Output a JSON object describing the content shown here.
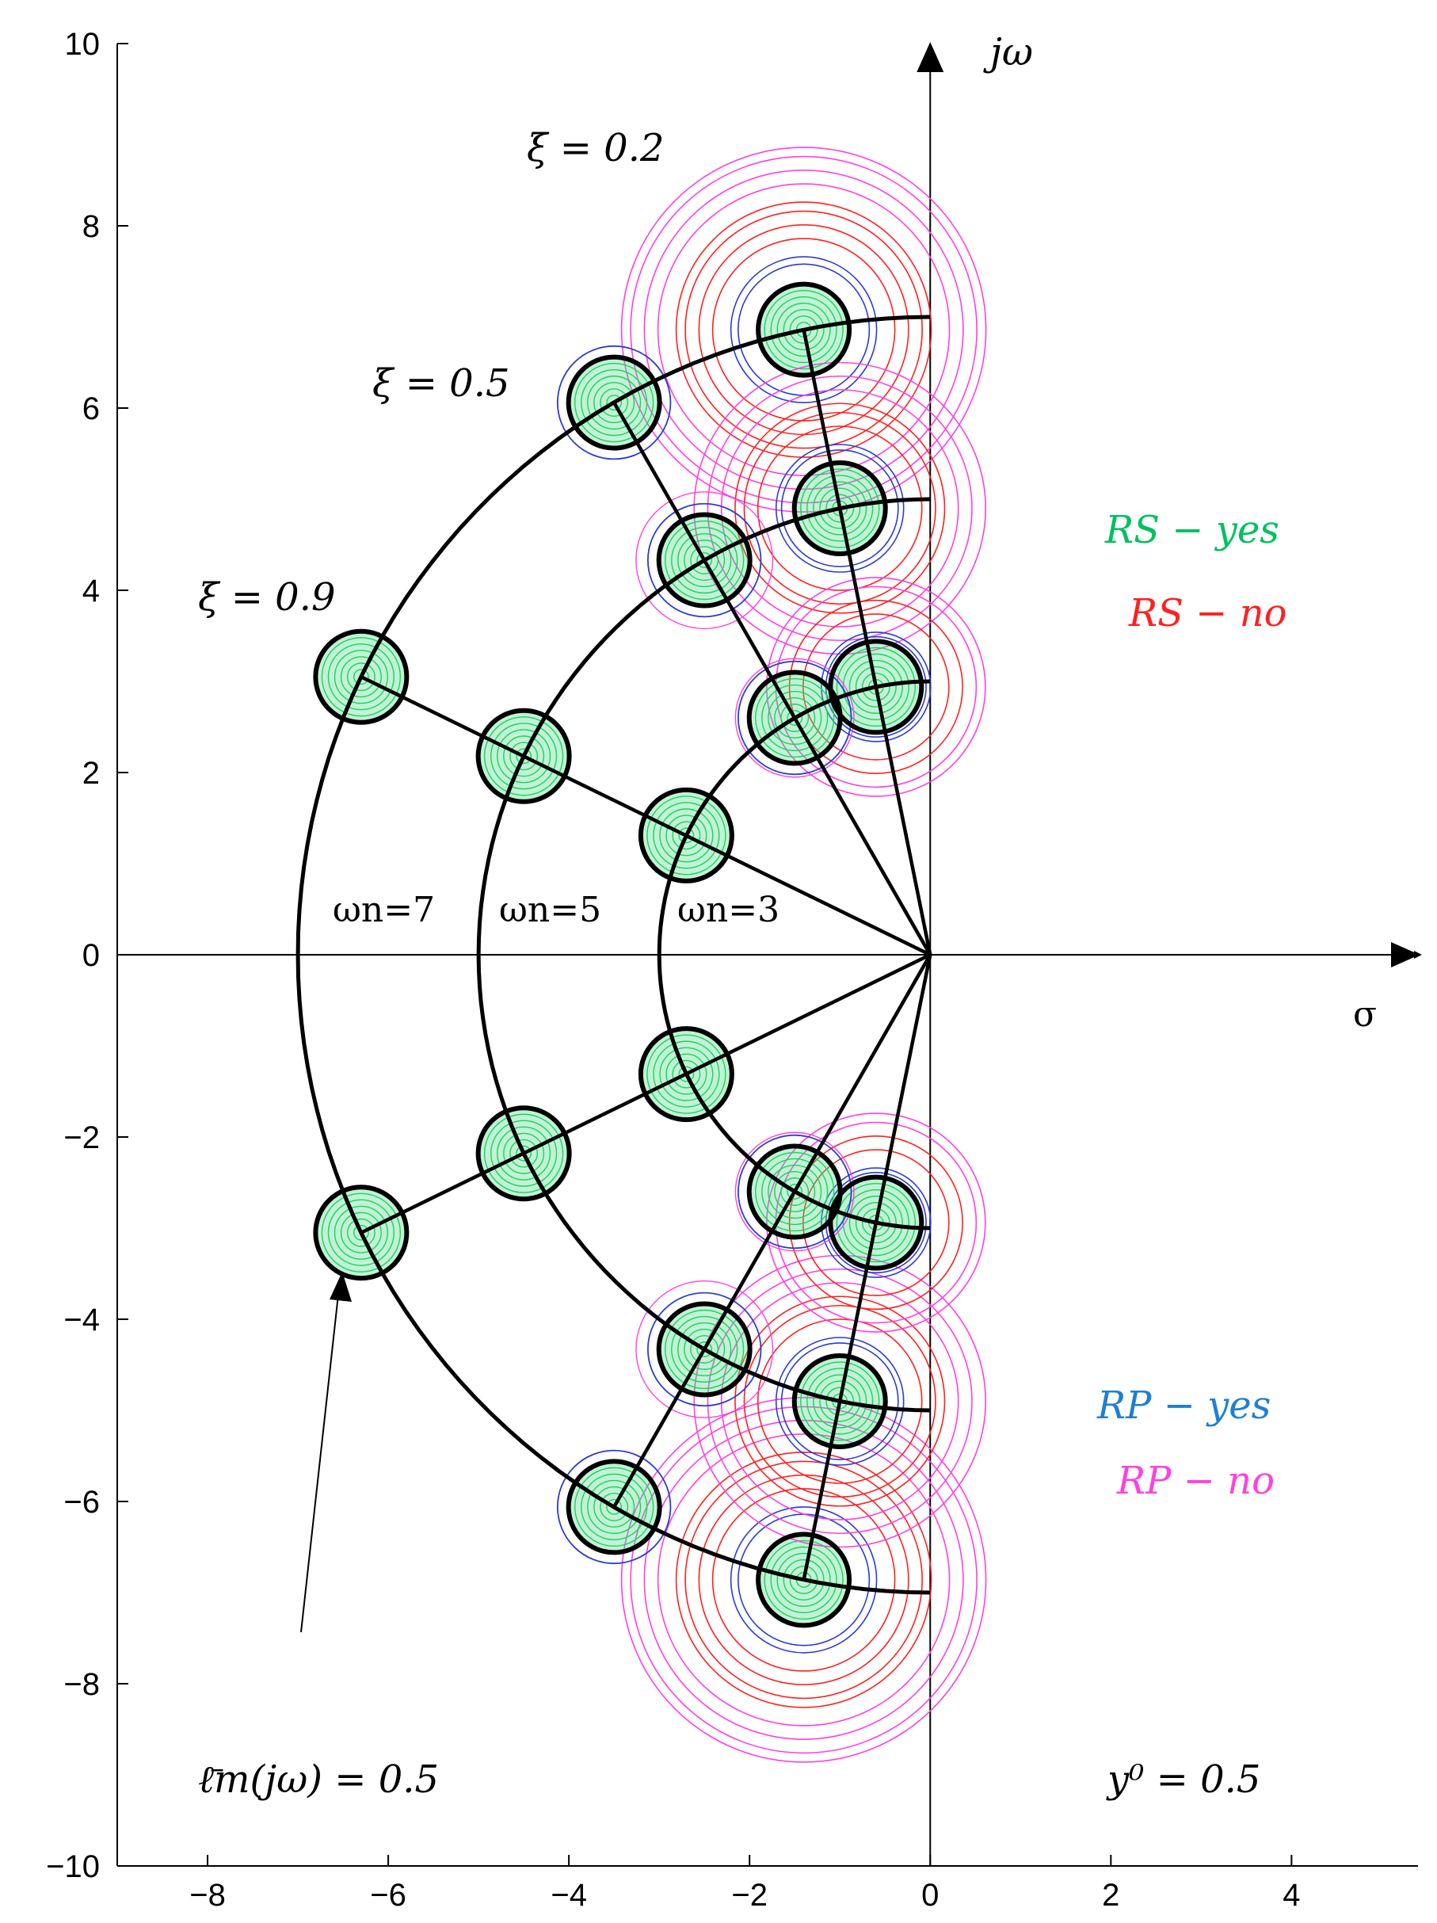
{
  "chart_data": {
    "type": "scatter",
    "title": "",
    "xlabel": "σ",
    "ylabel": "jω",
    "xlim": [
      -9,
      5.4
    ],
    "ylim": [
      -10,
      10
    ],
    "x_ticks": [
      -8,
      -6,
      -4,
      -2,
      0,
      2,
      4
    ],
    "y_ticks": [
      -10,
      -8,
      -6,
      -4,
      -2,
      0,
      2,
      4,
      6,
      8,
      10
    ],
    "x_tick_labels": [
      "−8",
      "−6",
      "−4",
      "−2",
      "0",
      "2",
      "4"
    ],
    "y_tick_labels": [
      "−10",
      "−8",
      "−6",
      "−4",
      "−2",
      "0",
      "2",
      "4",
      "6",
      "8",
      "10"
    ],
    "grid": false,
    "poles": [
      {
        "x": -1.4,
        "y": 6.86,
        "xi": 0.2,
        "wn": 7
      },
      {
        "x": -3.5,
        "y": 6.06,
        "xi": 0.5,
        "wn": 7
      },
      {
        "x": -6.3,
        "y": 3.05,
        "xi": 0.9,
        "wn": 7
      },
      {
        "x": -1.0,
        "y": 4.9,
        "xi": 0.2,
        "wn": 5
      },
      {
        "x": -2.5,
        "y": 4.33,
        "xi": 0.5,
        "wn": 5
      },
      {
        "x": -4.5,
        "y": 2.18,
        "xi": 0.9,
        "wn": 5
      },
      {
        "x": -0.6,
        "y": 2.94,
        "xi": 0.2,
        "wn": 3
      },
      {
        "x": -1.5,
        "y": 2.6,
        "xi": 0.5,
        "wn": 3
      },
      {
        "x": -2.7,
        "y": 1.31,
        "xi": 0.9,
        "wn": 3
      },
      {
        "x": -1.4,
        "y": -6.86,
        "xi": 0.2,
        "wn": 7
      },
      {
        "x": -3.5,
        "y": -6.06,
        "xi": 0.5,
        "wn": 7
      },
      {
        "x": -6.3,
        "y": -3.05,
        "xi": 0.9,
        "wn": 7
      },
      {
        "x": -1.0,
        "y": -4.9,
        "xi": 0.2,
        "wn": 5
      },
      {
        "x": -2.5,
        "y": -4.33,
        "xi": 0.5,
        "wn": 5
      },
      {
        "x": -4.5,
        "y": -2.18,
        "xi": 0.9,
        "wn": 5
      },
      {
        "x": -0.6,
        "y": -2.94,
        "xi": 0.2,
        "wn": 3
      },
      {
        "x": -1.5,
        "y": -2.6,
        "xi": 0.5,
        "wn": 3
      },
      {
        "x": -2.7,
        "y": -1.31,
        "xi": 0.9,
        "wn": 3
      }
    ],
    "wn_arcs": [
      3,
      5,
      7
    ],
    "xi_rays": [
      0.2,
      0.5,
      0.9
    ],
    "annotations": {
      "xi_02": "ξ = 0.2",
      "xi_05": "ξ = 0.5",
      "xi_09": "ξ = 0.9",
      "wn_7": "ωn=7",
      "wn_5": "ωn=5",
      "wn_3": "ωn=3",
      "l_bar": "ℓ̄m(jω) = 0.5",
      "y0": "y⁰ = 0.5"
    },
    "legend": [
      {
        "label": "RS − yes",
        "color": "#00c060",
        "position": "right-upper"
      },
      {
        "label": "RS − no",
        "color": "#ff2020",
        "position": "right-upper"
      },
      {
        "label": "RP − yes",
        "color": "#1f7fd0",
        "position": "right-lower"
      },
      {
        "label": "RP − no",
        "color": "#ff40e0",
        "position": "right-lower"
      }
    ],
    "colors": {
      "green": "#00d040",
      "green_fill": "#4dd98a",
      "blue": "#2a3bd6",
      "red": "#ff2020",
      "magenta": "#ff40e0"
    }
  }
}
